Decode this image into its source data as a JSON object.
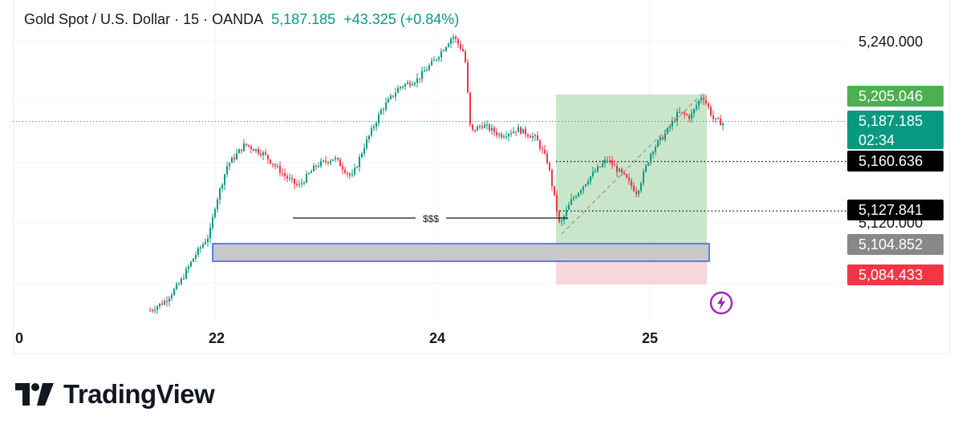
{
  "header": {
    "symbol": "Gold Spot / U.S. Dollar · 15 · OANDA",
    "price": "5,187.185",
    "change": "+43.325 (+0.84%)"
  },
  "colors": {
    "up": "#089981",
    "down": "#f23645",
    "tp_zone": "#a5d6a7",
    "sl_zone": "#f7c8cc",
    "zone_border": "#2962ff",
    "zone_fill": "#c8c8c8"
  },
  "chart_data": {
    "type": "candlestick",
    "symbol": "Gold Spot / U.S. Dollar",
    "interval": "15",
    "source": "OANDA",
    "x_ticks": [
      "0",
      "22",
      "24",
      "25"
    ],
    "y_ticks": [
      "5,240.000",
      "5,120.000"
    ],
    "ylim": [
      5060,
      5245
    ],
    "price_path": [
      [
        0.0,
        5062
      ],
      [
        0.5,
        5068
      ],
      [
        1.0,
        5080
      ],
      [
        1.5,
        5098
      ],
      [
        2.0,
        5112
      ],
      [
        2.2,
        5132
      ],
      [
        2.6,
        5158
      ],
      [
        3.2,
        5172
      ],
      [
        3.8,
        5166
      ],
      [
        4.6,
        5150
      ],
      [
        5.0,
        5144
      ],
      [
        5.6,
        5158
      ],
      [
        6.2,
        5163
      ],
      [
        6.8,
        5150
      ],
      [
        7.2,
        5170
      ],
      [
        7.8,
        5195
      ],
      [
        8.4,
        5210
      ],
      [
        9.0,
        5215
      ],
      [
        9.6,
        5228
      ],
      [
        10.2,
        5244
      ],
      [
        10.6,
        5232
      ],
      [
        10.8,
        5180
      ],
      [
        11.2,
        5185
      ],
      [
        11.8,
        5178
      ],
      [
        12.4,
        5182
      ],
      [
        13.0,
        5176
      ],
      [
        13.4,
        5160
      ],
      [
        13.8,
        5118
      ],
      [
        14.2,
        5135
      ],
      [
        14.8,
        5150
      ],
      [
        15.4,
        5162
      ],
      [
        16.0,
        5150
      ],
      [
        16.4,
        5140
      ],
      [
        16.9,
        5168
      ],
      [
        17.4,
        5180
      ],
      [
        17.8,
        5193
      ],
      [
        18.2,
        5190
      ],
      [
        18.6,
        5205
      ],
      [
        19.0,
        5188
      ],
      [
        19.3,
        5186
      ]
    ],
    "levels": [
      {
        "label": "5,205.046",
        "value": 5205.046,
        "color": "#4caf50"
      },
      {
        "label": "5,187.185",
        "value": 5187.185,
        "color": "#089981",
        "countdown": "02:34"
      },
      {
        "label": "5,160.636",
        "value": 5160.636,
        "color": "#000000"
      },
      {
        "label": "5,127.841",
        "value": 5127.841,
        "color": "#000000"
      },
      {
        "label": "5,104.852",
        "value": 5104.852,
        "color": "#888888"
      },
      {
        "label": "5,084.433",
        "value": 5084.433,
        "color": "#f23645"
      }
    ],
    "annotations": [
      "$$$"
    ]
  },
  "brand": "TradingView"
}
